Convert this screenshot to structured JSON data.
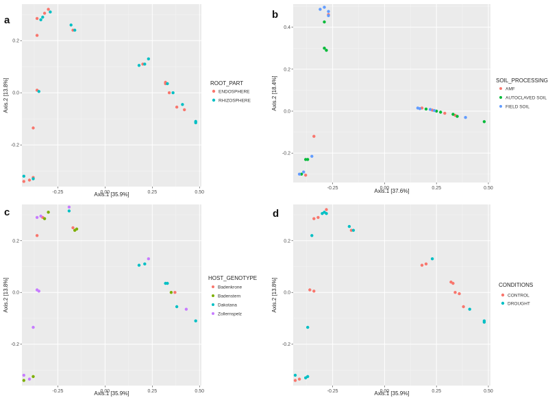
{
  "chart_data": [
    {
      "id": "a",
      "type": "scatter",
      "panel_label": "a",
      "xlabel": "Axis.1  [35.9%]",
      "ylabel": "Axis.2  [13.8%]",
      "xlim": [
        -0.44,
        0.51
      ],
      "ylim": [
        -0.36,
        0.34
      ],
      "xticks": [
        -0.25,
        0.0,
        0.25,
        0.5
      ],
      "xtick_labels": [
        "-0.25",
        "0.00",
        "0.25",
        "0.50"
      ],
      "yticks": [
        -0.2,
        0.0,
        0.2
      ],
      "ytick_labels": [
        "-0.2",
        "0.0",
        "0.2"
      ],
      "legend_title": "ROOT_PART",
      "series": [
        {
          "name": "ENDOSPHERE",
          "color": "#F8766D",
          "points": [
            [
              -0.3,
              0.32
            ],
            [
              -0.32,
              0.305
            ],
            [
              -0.36,
              0.285
            ],
            [
              -0.36,
              0.22
            ],
            [
              -0.36,
              0.01
            ],
            [
              -0.38,
              -0.135
            ],
            [
              -0.4,
              -0.335
            ],
            [
              -0.43,
              -0.34
            ],
            [
              -0.38,
              -0.325
            ],
            [
              0.32,
              0.04
            ],
            [
              0.34,
              0.0
            ],
            [
              0.38,
              -0.055
            ],
            [
              0.42,
              -0.065
            ],
            [
              -0.17,
              0.24
            ],
            [
              0.2,
              0.11
            ],
            [
              0.32,
              0.035
            ]
          ]
        },
        {
          "name": "RHIZOSPHERE",
          "color": "#00BFC4",
          "points": [
            [
              -0.29,
              0.31
            ],
            [
              -0.33,
              0.29
            ],
            [
              -0.34,
              0.28
            ],
            [
              -0.18,
              0.26
            ],
            [
              -0.16,
              0.24
            ],
            [
              -0.35,
              0.005
            ],
            [
              -0.38,
              -0.33
            ],
            [
              -0.43,
              -0.32
            ],
            [
              0.18,
              0.105
            ],
            [
              0.21,
              0.11
            ],
            [
              0.23,
              0.13
            ],
            [
              0.33,
              0.035
            ],
            [
              0.36,
              0.0
            ],
            [
              0.41,
              -0.045
            ],
            [
              0.48,
              -0.11
            ],
            [
              0.48,
              -0.115
            ]
          ]
        }
      ]
    },
    {
      "id": "b",
      "type": "scatter",
      "panel_label": "b",
      "xlabel": "Axis.1  [37.6%]",
      "ylabel": "Axis.2  [18.4%]",
      "xlim": [
        -0.44,
        0.51
      ],
      "ylim": [
        -0.34,
        0.51
      ],
      "xticks": [
        -0.25,
        0.0,
        0.25,
        0.5
      ],
      "xtick_labels": [
        "-0.25",
        "0.00",
        "0.25",
        "0.50"
      ],
      "yticks": [
        -0.2,
        0.0,
        0.2,
        0.4
      ],
      "ytick_labels": [
        "-0.2",
        "0.0",
        "0.2",
        "0.4"
      ],
      "legend_title": "SOIL_PROCESSING",
      "series": [
        {
          "name": "AMF",
          "color": "#F8766D",
          "points": [
            [
              -0.34,
              -0.12
            ],
            [
              -0.38,
              -0.305
            ],
            [
              -0.27,
              0.46
            ],
            [
              0.18,
              0.015
            ],
            [
              0.23,
              0.005
            ],
            [
              0.29,
              -0.01
            ],
            [
              0.34,
              -0.02
            ]
          ]
        },
        {
          "name": "AUTOCLAVED SOIL",
          "color": "#00BA38",
          "points": [
            [
              -0.29,
              0.425
            ],
            [
              -0.29,
              0.3
            ],
            [
              -0.28,
              0.29
            ],
            [
              -0.38,
              -0.23
            ],
            [
              -0.37,
              -0.23
            ],
            [
              -0.4,
              -0.3
            ],
            [
              0.2,
              0.01
            ],
            [
              0.25,
              0.0
            ],
            [
              0.27,
              -0.005
            ],
            [
              0.33,
              -0.015
            ],
            [
              0.35,
              -0.025
            ],
            [
              0.48,
              -0.05
            ]
          ]
        },
        {
          "name": "FIELD SOIL",
          "color": "#619CFF",
          "points": [
            [
              -0.29,
              0.495
            ],
            [
              -0.31,
              0.485
            ],
            [
              -0.27,
              0.475
            ],
            [
              -0.27,
              0.455
            ],
            [
              -0.35,
              -0.215
            ],
            [
              -0.39,
              -0.29
            ],
            [
              -0.41,
              -0.3
            ],
            [
              0.16,
              0.015
            ],
            [
              0.17,
              0.012
            ],
            [
              0.22,
              0.008
            ],
            [
              0.24,
              0.003
            ],
            [
              0.39,
              -0.03
            ]
          ]
        }
      ]
    },
    {
      "id": "c",
      "type": "scatter",
      "panel_label": "c",
      "xlabel": "Axis.1  [35.9%]",
      "ylabel": "Axis.2  [13.8%]",
      "xlim": [
        -0.44,
        0.51
      ],
      "ylim": [
        -0.36,
        0.34
      ],
      "xticks": [
        -0.25,
        0.0,
        0.25,
        0.5
      ],
      "xtick_labels": [
        "-0.25",
        "0.00",
        "0.25",
        "0.50"
      ],
      "yticks": [
        -0.2,
        0.0,
        0.2
      ],
      "ytick_labels": [
        "-0.2",
        "0.0",
        "0.2"
      ],
      "legend_title": "HOST_GENOTYPE",
      "series": [
        {
          "name": "Badenkrone",
          "color": "#F8766D",
          "points": [
            [
              -0.36,
              0.22
            ],
            [
              -0.17,
              0.25
            ],
            [
              0.37,
              0.0
            ],
            [
              -0.33,
              0.29
            ]
          ]
        },
        {
          "name": "Badenstern",
          "color": "#7CAE00",
          "points": [
            [
              -0.3,
              0.31
            ],
            [
              -0.32,
              0.285
            ],
            [
              -0.16,
              0.24
            ],
            [
              -0.15,
              0.245
            ],
            [
              0.35,
              0.0
            ],
            [
              -0.43,
              -0.34
            ],
            [
              -0.38,
              -0.325
            ]
          ]
        },
        {
          "name": "Dakotana",
          "color": "#00BFC4",
          "points": [
            [
              -0.19,
              0.315
            ],
            [
              0.18,
              0.105
            ],
            [
              0.21,
              0.11
            ],
            [
              0.32,
              0.035
            ],
            [
              0.33,
              0.035
            ],
            [
              0.38,
              -0.055
            ],
            [
              0.48,
              -0.11
            ]
          ]
        },
        {
          "name": "Zollernspelz",
          "color": "#C77CFF",
          "points": [
            [
              -0.19,
              0.33
            ],
            [
              -0.34,
              0.295
            ],
            [
              -0.36,
              0.29
            ],
            [
              -0.36,
              0.01
            ],
            [
              -0.35,
              0.005
            ],
            [
              -0.38,
              -0.135
            ],
            [
              0.23,
              0.13
            ],
            [
              0.43,
              -0.065
            ],
            [
              -0.43,
              -0.32
            ],
            [
              -0.4,
              -0.335
            ]
          ]
        }
      ]
    },
    {
      "id": "d",
      "type": "scatter",
      "panel_label": "d",
      "xlabel": "Axis.1  [35.9%]",
      "ylabel": "Axis.2  [13.8%]",
      "xlim": [
        -0.44,
        0.51
      ],
      "ylim": [
        -0.36,
        0.34
      ],
      "xticks": [
        -0.25,
        0.0,
        0.25,
        0.5
      ],
      "xtick_labels": [
        "-0.25",
        "0.00",
        "0.25",
        "0.50"
      ],
      "yticks": [
        -0.2,
        0.0,
        0.2
      ],
      "ytick_labels": [
        "-0.2",
        "0.0",
        "0.2"
      ],
      "legend_title": "CONDITIONS",
      "series": [
        {
          "name": "CONTROL",
          "color": "#F8766D",
          "points": [
            [
              -0.28,
              0.32
            ],
            [
              -0.32,
              0.29
            ],
            [
              -0.34,
              0.285
            ],
            [
              -0.16,
              0.24
            ],
            [
              -0.36,
              0.01
            ],
            [
              -0.34,
              0.005
            ],
            [
              0.2,
              0.11
            ],
            [
              0.18,
              0.105
            ],
            [
              0.32,
              0.04
            ],
            [
              0.33,
              0.035
            ],
            [
              0.34,
              0.0
            ],
            [
              0.36,
              -0.005
            ],
            [
              0.38,
              -0.055
            ],
            [
              -0.43,
              -0.34
            ],
            [
              -0.41,
              -0.335
            ]
          ]
        },
        {
          "name": "DROUGHT",
          "color": "#00BFC4",
          "points": [
            [
              -0.29,
              0.31
            ],
            [
              -0.3,
              0.305
            ],
            [
              -0.28,
              0.305
            ],
            [
              -0.17,
              0.255
            ],
            [
              -0.15,
              0.24
            ],
            [
              -0.35,
              0.22
            ],
            [
              -0.37,
              -0.135
            ],
            [
              -0.38,
              -0.33
            ],
            [
              -0.43,
              -0.32
            ],
            [
              -0.37,
              -0.325
            ],
            [
              0.23,
              0.13
            ],
            [
              0.41,
              -0.065
            ],
            [
              0.48,
              -0.11
            ],
            [
              0.48,
              -0.115
            ]
          ]
        }
      ]
    }
  ]
}
